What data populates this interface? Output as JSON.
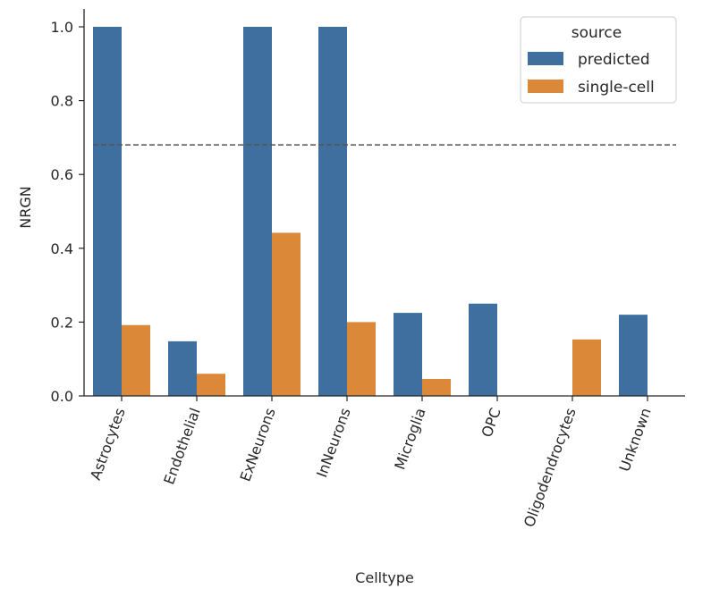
{
  "chart_data": {
    "type": "bar",
    "xlabel": "Celltype",
    "ylabel": "NRGN",
    "ylim": [
      0,
      1.05
    ],
    "yticks": [
      "0.0",
      "0.2",
      "0.4",
      "0.6",
      "0.8",
      "1.0"
    ],
    "categories": [
      "Astrocytes",
      "Endothelial",
      "ExNeurons",
      "InNeurons",
      "Microglia",
      "OPC",
      "Oligodendrocytes",
      "Unknown"
    ],
    "series": [
      {
        "name": "predicted",
        "color": "#3e6f9e",
        "values": [
          1.0,
          0.148,
          1.0,
          1.0,
          0.225,
          0.25,
          null,
          0.22
        ]
      },
      {
        "name": "single-cell",
        "color": "#dc8839",
        "values": [
          0.192,
          0.06,
          0.442,
          0.2,
          0.046,
          null,
          0.153,
          null
        ]
      }
    ],
    "reference_line": {
      "value": 0.68,
      "style": "dashed",
      "color": "#555555"
    },
    "legend": {
      "title": "source",
      "position": "top-right"
    },
    "grid": false
  }
}
